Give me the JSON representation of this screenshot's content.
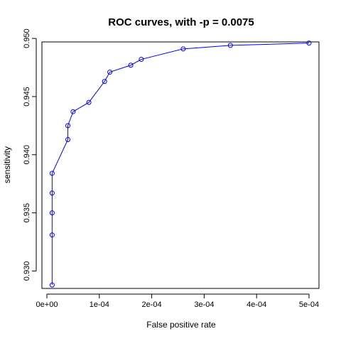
{
  "chart_data": {
    "type": "line",
    "title": "ROC curves, with -p = 0.0075",
    "xlabel": "False positive rate",
    "ylabel": "sensitivity",
    "xlim": [
      0,
      0.0005
    ],
    "ylim": [
      0.9285,
      0.9497
    ],
    "x_ticks": [
      0,
      0.0001,
      0.0002,
      0.0003,
      0.0004,
      0.0005
    ],
    "x_tick_labels": [
      "0e+00",
      "1e-04",
      "2e-04",
      "3e-04",
      "4e-04",
      "5e-04"
    ],
    "y_ticks": [
      0.93,
      0.935,
      0.94,
      0.945,
      0.95
    ],
    "y_tick_labels": [
      "0.930",
      "0.935",
      "0.940",
      "0.945",
      "0.950"
    ],
    "grid": false,
    "series": [
      {
        "color": "#0000ff",
        "marker": "open-circle",
        "points": [
          {
            "x": 1e-05,
            "y": 0.9288
          },
          {
            "x": 1e-05,
            "y": 0.9331
          },
          {
            "x": 1e-05,
            "y": 0.935
          },
          {
            "x": 1e-05,
            "y": 0.9367
          },
          {
            "x": 1e-05,
            "y": 0.9384
          },
          {
            "x": 4e-05,
            "y": 0.9413
          },
          {
            "x": 4e-05,
            "y": 0.9425
          },
          {
            "x": 5e-05,
            "y": 0.9437
          },
          {
            "x": 8e-05,
            "y": 0.9445
          },
          {
            "x": 0.00011,
            "y": 0.9463
          },
          {
            "x": 0.00012,
            "y": 0.9471
          },
          {
            "x": 0.00016,
            "y": 0.9477
          },
          {
            "x": 0.00018,
            "y": 0.9482
          },
          {
            "x": 0.00026,
            "y": 0.9491
          },
          {
            "x": 0.00035,
            "y": 0.9494
          },
          {
            "x": 0.0005,
            "y": 0.9496
          }
        ]
      }
    ]
  }
}
